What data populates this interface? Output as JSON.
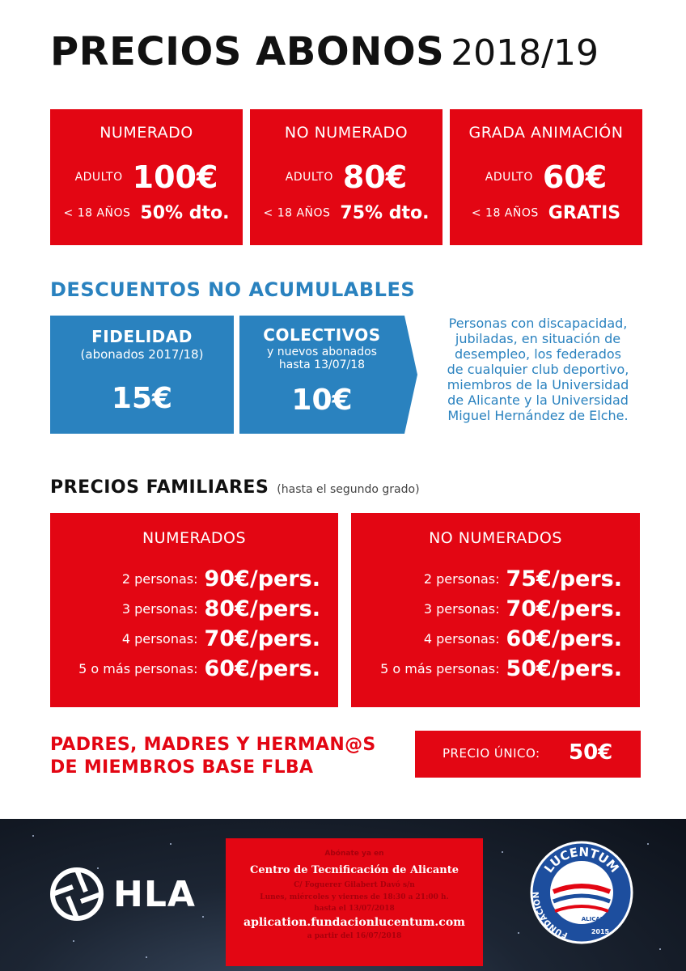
{
  "title": {
    "main": "PRECIOS ABONOS",
    "year": "2018/19"
  },
  "prices": [
    {
      "header": "NUMERADO",
      "adult_label": "ADULTO",
      "adult_price": "100€",
      "minor_label": "< 18 AÑOS",
      "minor_price": "50% dto."
    },
    {
      "header": "NO NUMERADO",
      "adult_label": "ADULTO",
      "adult_price": "80€",
      "minor_label": "< 18 AÑOS",
      "minor_price": "75% dto."
    },
    {
      "header": "GRADA ANIMACIÓN",
      "adult_label": "ADULTO",
      "adult_price": "60€",
      "minor_label": "< 18 AÑOS",
      "minor_price": "GRATIS"
    }
  ],
  "discounts": {
    "title": "DESCUENTOS NO ACUMULABLES",
    "fidelidad": {
      "name": "FIDELIDAD",
      "sub": "(abonados 2017/18)",
      "price": "15€"
    },
    "colectivos": {
      "name": "COLECTIVOS",
      "sub1": "y nuevos abonados",
      "sub2": "hasta 13/07/18",
      "price": "10€"
    },
    "description": [
      "Personas con discapacidad,",
      "jubiladas, en situación de",
      "desempleo, los federados",
      "de cualquier club deportivo,",
      "miembros de la Universidad",
      "de Alicante y la Universidad",
      "Miguel Hernández de Elche."
    ]
  },
  "family": {
    "title": "PRECIOS FAMILIARES",
    "note": "(hasta el segundo grado)",
    "numerados": {
      "header": "NUMERADOS",
      "rows": [
        {
          "label": "2 personas:",
          "price": "90€/pers."
        },
        {
          "label": "3 personas:",
          "price": "80€/pers."
        },
        {
          "label": "4 personas:",
          "price": "70€/pers."
        },
        {
          "label": "5 o más personas:",
          "price": "60€/pers."
        }
      ]
    },
    "no_numerados": {
      "header": "NO NUMERADOS",
      "rows": [
        {
          "label": "2 personas:",
          "price": "75€/pers."
        },
        {
          "label": "3 personas:",
          "price": "70€/pers."
        },
        {
          "label": "4 personas:",
          "price": "60€/pers."
        },
        {
          "label": "5 o más personas:",
          "price": "50€/pers."
        }
      ]
    }
  },
  "padres": {
    "line1": "PADRES, MADRES Y HERMAN@S",
    "line2": "DE MIEMBROS BASE FLBA",
    "price_label": "PRECIO ÚNICO:",
    "price": "50€"
  },
  "footer": {
    "hla": "HLA",
    "card": {
      "intro": "Abónate ya en",
      "center": "Centro de Tecnificación de Alicante",
      "address": "C/ Foguerer Gilabert Davó s/n",
      "hours": "Lunes, miércoles y viernes de 18:30 a 21:00 h.",
      "until": "hasta el 13/07/2018",
      "web": "aplication.fundacionlucentum.com",
      "from": "a partir del 16/07/2018"
    },
    "seal": {
      "top": "LUCENTUM",
      "left": "FUNDACIÓN",
      "city": "ALICANTE",
      "year": "2015"
    }
  },
  "colors": {
    "red": "#e30613",
    "blue": "#2a82bf",
    "dark": "#111111"
  }
}
